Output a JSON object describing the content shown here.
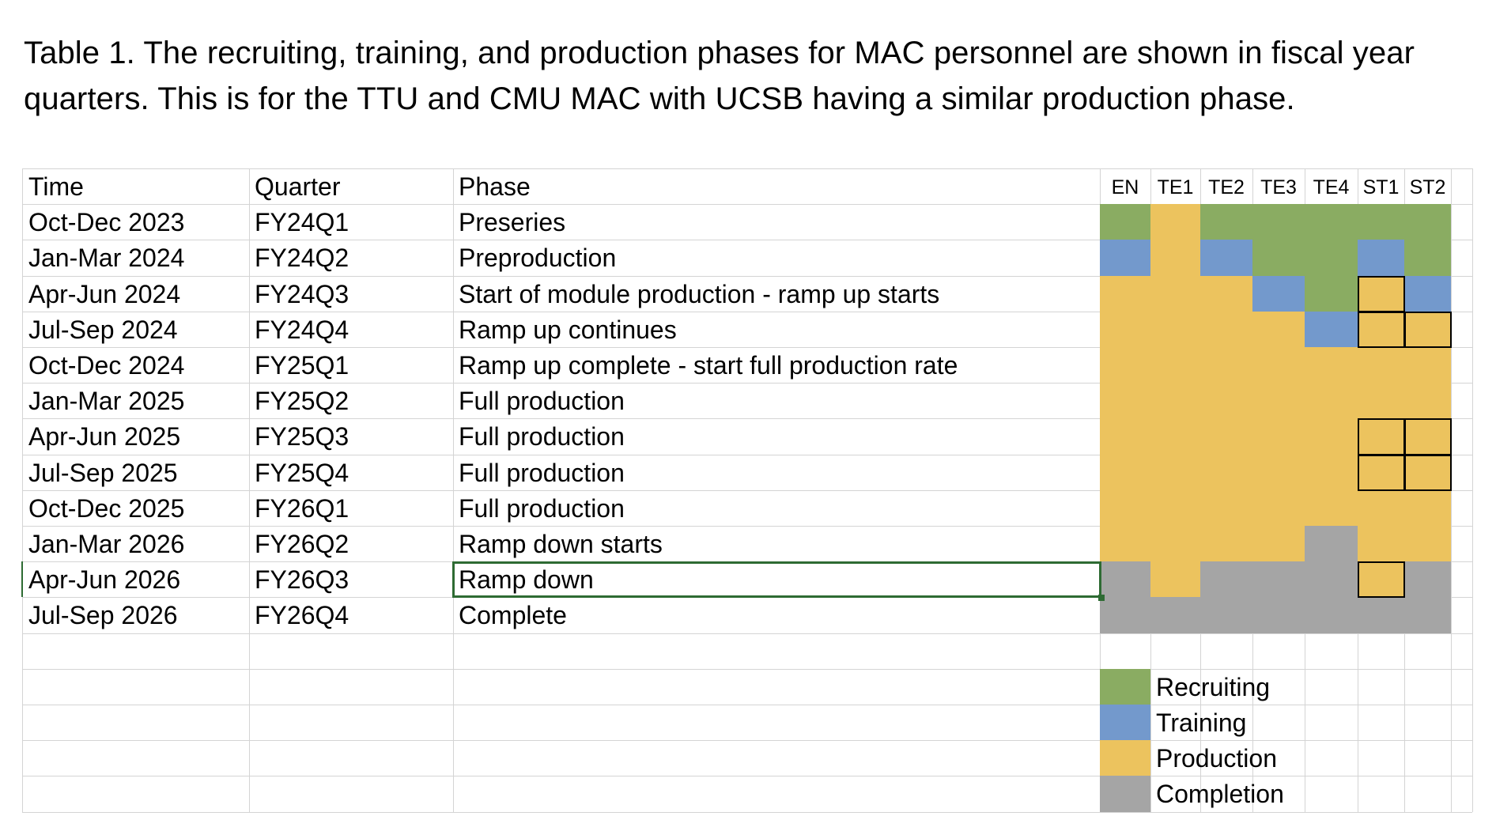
{
  "caption": "Table 1.  The recruiting, training, and production phases for MAC personnel are shown in fiscal year quarters. This is for the TTU and CMU MAC with UCSB having a similar production phase.",
  "colors": {
    "recruiting": "#8aac62",
    "training": "#7399cc",
    "production": "#ecc35e",
    "completion": "#a5a5a5",
    "grid": "#d4d4d4",
    "selection": "#2e6b33"
  },
  "table": {
    "headers": {
      "time": "Time",
      "quarter": "Quarter",
      "phase": "Phase"
    },
    "personnel": [
      "EN",
      "TE1",
      "TE2",
      "TE3",
      "TE4",
      "ST1",
      "ST2"
    ],
    "rows": [
      {
        "time": "Oct-Dec 2023",
        "quarter": "FY24Q1",
        "phase": "Preseries",
        "status": [
          "recruiting",
          "production",
          "recruiting",
          "recruiting",
          "recruiting",
          "recruiting",
          "recruiting"
        ]
      },
      {
        "time": "Jan-Mar 2024",
        "quarter": "FY24Q2",
        "phase": "Preproduction",
        "status": [
          "training",
          "production",
          "training",
          "recruiting",
          "recruiting",
          "training",
          "recruiting"
        ]
      },
      {
        "time": "Apr-Jun 2024",
        "quarter": "FY24Q3",
        "phase": "Start of module production - ramp up starts",
        "status": [
          "production",
          "production",
          "production",
          "training",
          "recruiting",
          "production",
          "training"
        ]
      },
      {
        "time": "Jul-Sep 2024",
        "quarter": "FY24Q4",
        "phase": "Ramp up continues",
        "status": [
          "production",
          "production",
          "production",
          "production",
          "training",
          "production",
          "production"
        ]
      },
      {
        "time": "Oct-Dec 2024",
        "quarter": "FY25Q1",
        "phase": "Ramp up complete - start full production rate",
        "status": [
          "production",
          "production",
          "production",
          "production",
          "production",
          "production",
          "production"
        ]
      },
      {
        "time": "Jan-Mar 2025",
        "quarter": "FY25Q2",
        "phase": "Full production",
        "status": [
          "production",
          "production",
          "production",
          "production",
          "production",
          "production",
          "production"
        ]
      },
      {
        "time": "Apr-Jun 2025",
        "quarter": "FY25Q3",
        "phase": "Full production",
        "status": [
          "production",
          "production",
          "production",
          "production",
          "production",
          "production",
          "production"
        ]
      },
      {
        "time": "Jul-Sep 2025",
        "quarter": "FY25Q4",
        "phase": "Full production",
        "status": [
          "production",
          "production",
          "production",
          "production",
          "production",
          "production",
          "production"
        ]
      },
      {
        "time": "Oct-Dec 2025",
        "quarter": "FY26Q1",
        "phase": "Full production",
        "status": [
          "production",
          "production",
          "production",
          "production",
          "production",
          "production",
          "production"
        ]
      },
      {
        "time": "Jan-Mar 2026",
        "quarter": "FY26Q2",
        "phase": "Ramp down starts",
        "status": [
          "production",
          "production",
          "production",
          "production",
          "completion",
          "production",
          "production"
        ]
      },
      {
        "time": "Apr-Jun 2026",
        "quarter": "FY26Q3",
        "phase": "Ramp down",
        "status": [
          "completion",
          "production",
          "completion",
          "completion",
          "completion",
          "production",
          "completion"
        ]
      },
      {
        "time": "Jul-Sep 2026",
        "quarter": "FY26Q4",
        "phase": "Complete",
        "status": [
          "completion",
          "completion",
          "completion",
          "completion",
          "completion",
          "completion",
          "completion"
        ]
      }
    ],
    "outlined_cells": [
      {
        "row": 2,
        "col": 5
      },
      {
        "row": 3,
        "col": 5
      },
      {
        "row": 3,
        "col": 6
      },
      {
        "row": 6,
        "col": 5
      },
      {
        "row": 6,
        "col": 6
      },
      {
        "row": 7,
        "col": 5
      },
      {
        "row": 7,
        "col": 6
      },
      {
        "row": 10,
        "col": 5
      }
    ],
    "selected_row": 10
  },
  "legend": [
    {
      "label": "Recruiting",
      "key": "recruiting"
    },
    {
      "label": "Training",
      "key": "training"
    },
    {
      "label": "Production",
      "key": "production"
    },
    {
      "label": "Completion",
      "key": "completion"
    }
  ]
}
